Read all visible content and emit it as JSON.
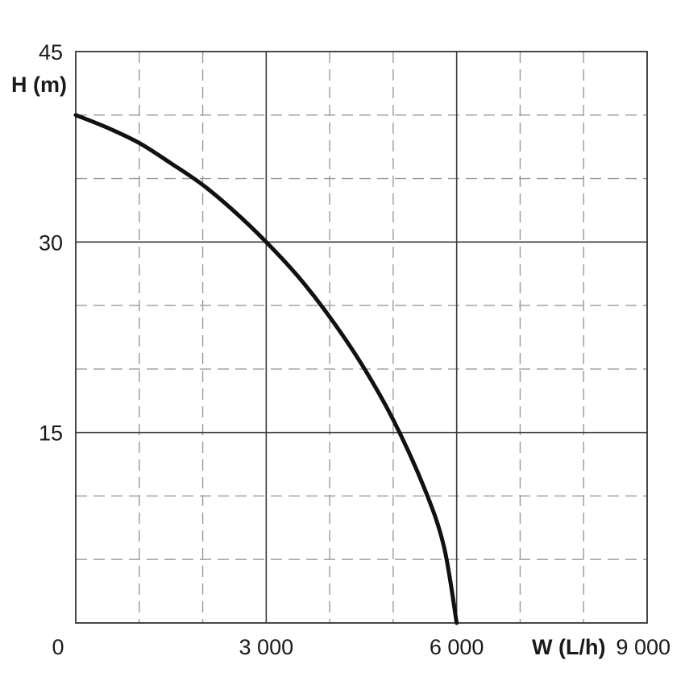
{
  "chart_data": {
    "type": "line",
    "title": "",
    "xlabel": "W (L/h)",
    "ylabel": "H (m)",
    "xlim": [
      0,
      9000
    ],
    "ylim": [
      0,
      45
    ],
    "x_ticks": [
      {
        "value": 0,
        "label": "0"
      },
      {
        "value": 3000,
        "label": "3 000"
      },
      {
        "value": 6000,
        "label": "6 000"
      },
      {
        "value": 9000,
        "label": "9 000"
      }
    ],
    "y_ticks": [
      {
        "value": 15,
        "label": "15"
      },
      {
        "value": 30,
        "label": "30"
      },
      {
        "value": 45,
        "label": "45"
      }
    ],
    "major_grid_x": [
      3000,
      6000
    ],
    "major_grid_y": [
      15,
      30
    ],
    "minor_grid_x": [
      1000,
      2000,
      4000,
      5000,
      7000,
      8000
    ],
    "minor_grid_y": [
      5,
      10,
      20,
      25,
      35,
      40
    ],
    "grid": true,
    "legend": "none",
    "series": [
      {
        "x": [
          0,
          500,
          1000,
          1500,
          2000,
          2500,
          3000,
          3500,
          4000,
          4500,
          5000,
          5500,
          5800,
          6000
        ],
        "y": [
          40,
          39,
          37.8,
          36.2,
          34.5,
          32.4,
          30,
          27.3,
          24.1,
          20.4,
          16,
          10.5,
          6,
          0
        ]
      }
    ]
  }
}
